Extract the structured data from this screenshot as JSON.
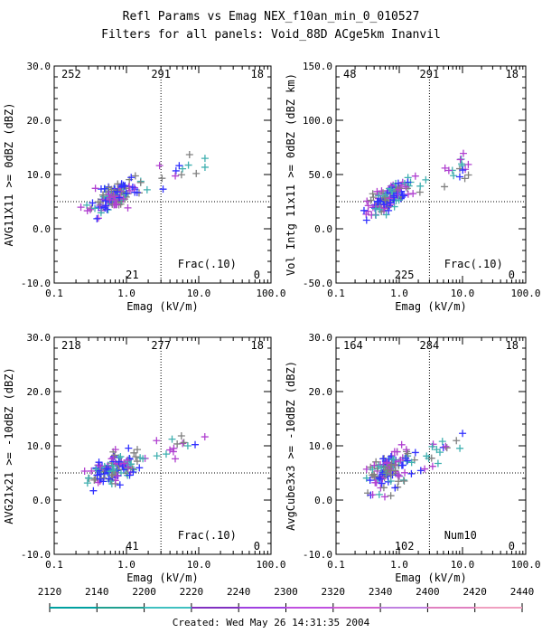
{
  "header": {
    "title": "Refl Params vs Emag   NEX_f10an_min_0_010527",
    "subtitle": "Filters for all panels:  Void_88D ACge5km Inanvil"
  },
  "chart_data": [
    {
      "type": "scatter",
      "ylabel": "AVG11X11 >= 0dBZ (dBZ)",
      "xlabel": "Emag (kV/m)",
      "xscale": "log",
      "xlim": [
        0.1,
        100.0
      ],
      "ylim": [
        -10.0,
        30.0
      ],
      "x_ticks": [
        "0.1",
        "1.0",
        "10.0",
        "100.0"
      ],
      "y_ticks": [
        "-10.0",
        "0.0",
        "10.0",
        "20.0",
        "30.0"
      ],
      "threshold_x": 3.0,
      "threshold_y": 5.0,
      "quadrant_counts": {
        "top_left": "252",
        "top_mid": "291",
        "top_right": "18",
        "bottom_left": "21",
        "bottom_right": "0"
      },
      "annotation": "Frac(.10)",
      "seed": 11
    },
    {
      "type": "scatter",
      "ylabel": "Vol Intg 11x11 >= 0dBZ (dBZ km)",
      "xlabel": "Emag (kV/m)",
      "xscale": "log",
      "xlim": [
        0.1,
        100.0
      ],
      "ylim": [
        -50.0,
        150.0
      ],
      "x_ticks": [
        "0.1",
        "1.0",
        "10.0",
        "100.0"
      ],
      "y_ticks": [
        "-50.0",
        "0.0",
        "50.0",
        "100.0",
        "150.0"
      ],
      "threshold_x": 3.0,
      "threshold_y": 25.0,
      "quadrant_counts": {
        "top_left": "48",
        "top_mid": "291",
        "top_right": "18",
        "bottom_left": "225",
        "bottom_right": "0"
      },
      "annotation": "Frac(.10)",
      "seed": 23
    },
    {
      "type": "scatter",
      "ylabel": "AVG21x21 >= -10dBZ (dBZ)",
      "xlabel": "Emag (kV/m)",
      "xscale": "log",
      "xlim": [
        0.1,
        100.0
      ],
      "ylim": [
        -10.0,
        30.0
      ],
      "x_ticks": [
        "0.1",
        "1.0",
        "10.0",
        "100.0"
      ],
      "y_ticks": [
        "-10.0",
        "0.0",
        "10.0",
        "20.0",
        "30.0"
      ],
      "threshold_x": 3.0,
      "threshold_y": 5.0,
      "quadrant_counts": {
        "top_left": "218",
        "top_mid": "277",
        "top_right": "18",
        "bottom_left": "41",
        "bottom_right": "0"
      },
      "annotation": "Frac(.10)",
      "seed": 37
    },
    {
      "type": "scatter",
      "ylabel": "AvgCube3x3 >= -10dBZ (dBZ)",
      "xlabel": "Emag (kV/m)",
      "xscale": "log",
      "xlim": [
        0.1,
        100.0
      ],
      "ylim": [
        -10.0,
        30.0
      ],
      "x_ticks": [
        "0.1",
        "1.0",
        "10.0",
        "100.0"
      ],
      "y_ticks": [
        "-10.0",
        "0.0",
        "10.0",
        "20.0",
        "30.0"
      ],
      "threshold_x": 3.0,
      "threshold_y": 5.0,
      "quadrant_counts": {
        "top_left": "164",
        "top_mid": "284",
        "top_right": "18",
        "bottom_left": "102",
        "bottom_right": "0"
      },
      "annotation": "Num10",
      "seed": 51
    }
  ],
  "colorbar": {
    "ticks": [
      "2120",
      "2140",
      "2200",
      "2220",
      "2240",
      "2300",
      "2320",
      "2340",
      "2400",
      "2420",
      "2440"
    ],
    "colors": [
      "#00a0a0",
      "#20a090",
      "#40c0c0",
      "#8030c0",
      "#a040e0",
      "#c050e0",
      "#d060d0",
      "#c080e0",
      "#e080c0",
      "#f0a0c0"
    ]
  },
  "footer": {
    "created": "Created: Wed May 26 14:31:35 2004"
  },
  "series_colors": [
    "#808080",
    "#3030ff",
    "#b040d0",
    "#40b0b0"
  ]
}
